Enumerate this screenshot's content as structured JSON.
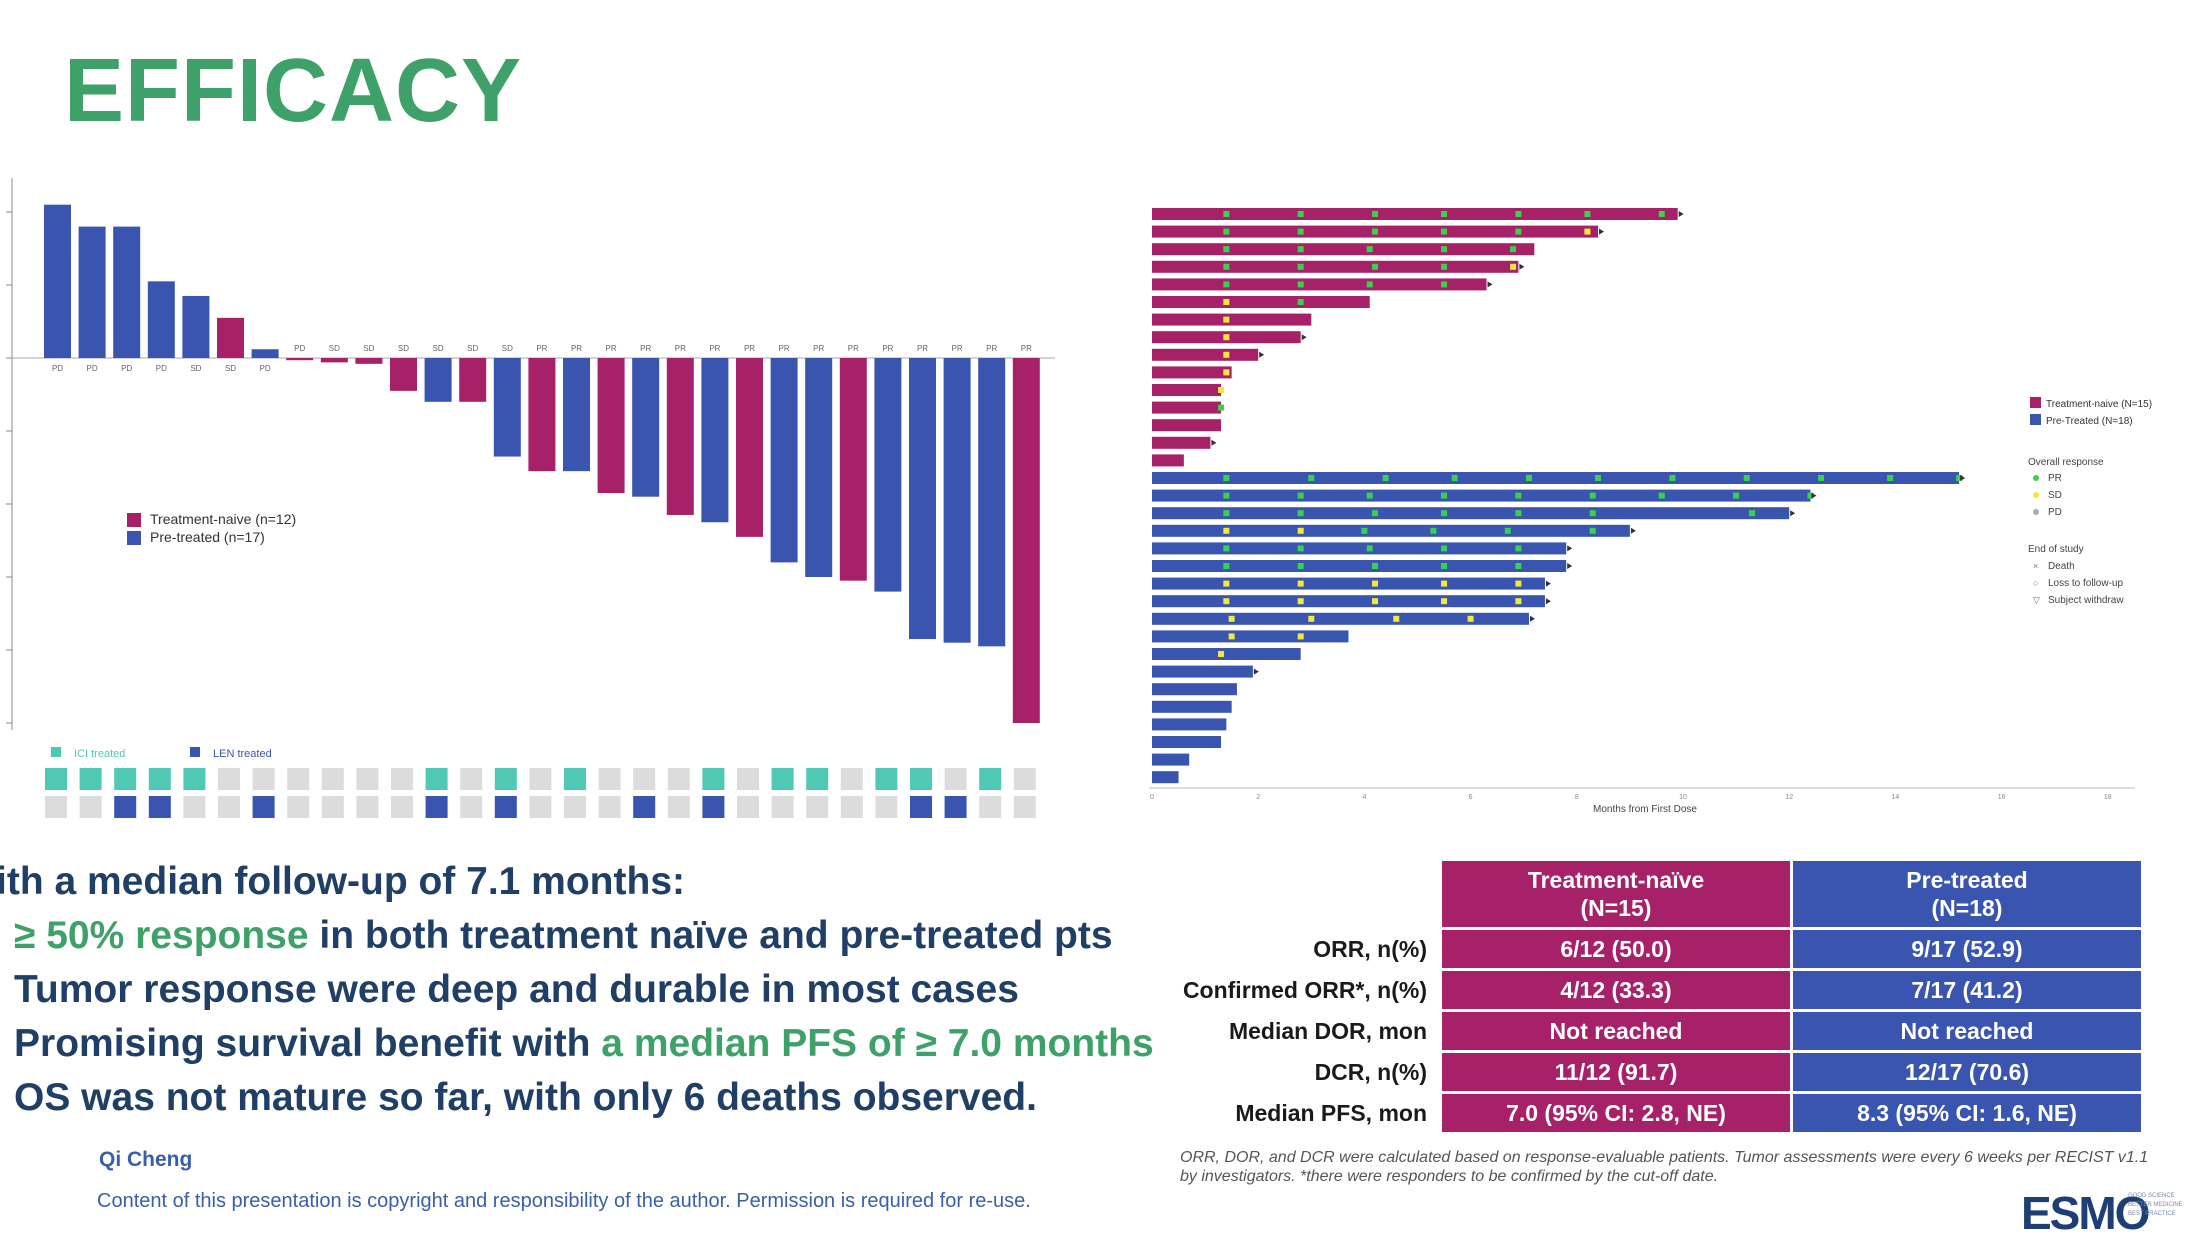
{
  "slide": {
    "title": "EFFICACY",
    "author": "Qi Cheng",
    "copyright": "Content of this presentation is copyright and responsibility of the author. Permission is required for re-use."
  },
  "bullets": [
    {
      "parts": [
        {
          "text": "ith a median follow-up of 7.1 months:",
          "hl": false
        }
      ]
    },
    {
      "parts": [
        {
          "text": "≥ 50% response",
          "hl": true
        },
        {
          "text": " in both treatment naïve and pre-treated pts",
          "hl": false
        }
      ]
    },
    {
      "parts": [
        {
          "text": "Tumor response were deep and durable in most cases",
          "hl": false
        }
      ]
    },
    {
      "parts": [
        {
          "text": "Promising survival benefit with ",
          "hl": false
        },
        {
          "text": "a median PFS of ≥ 7.0 months",
          "hl": true
        }
      ]
    },
    {
      "parts": [
        {
          "text": "OS was not mature so far, with only 6 deaths observed.",
          "hl": false
        }
      ]
    }
  ],
  "table": {
    "headers": [
      "Treatment-naïve\n(N=15)",
      "Pre-treated\n(N=18)"
    ],
    "rows": [
      {
        "label": "ORR, n(%)",
        "naive": "6/12 (50.0)",
        "pre": "9/17 (52.9)"
      },
      {
        "label": "Confirmed ORR*, n(%)",
        "naive": "4/12 (33.3)",
        "pre": "7/17 (41.2)"
      },
      {
        "label": "Median DOR, mon",
        "naive": "Not reached",
        "pre": "Not reached"
      },
      {
        "label": "DCR, n(%)",
        "naive": "11/12 (91.7)",
        "pre": "12/17 (70.6)"
      },
      {
        "label": "Median PFS, mon",
        "naive": "7.0 (95% CI: 2.8, NE)",
        "pre": "8.3 (95% CI: 1.6, NE)"
      }
    ],
    "footnote": "ORR, DOR, and DCR were calculated based on response-evaluable patients. Tumor assessments were every 6 weeks per RECIST v1.1 by investigators. *there were responders to be confirmed  by the cut-off date."
  },
  "logo": {
    "text": "ESMO",
    "sub": [
      "GOOD SCIENCE",
      "BETTER MEDICINE",
      "BEST PRACTICE"
    ]
  },
  "colors": {
    "naive": "#a72168",
    "pre": "#3a55b0",
    "ici": "#4fc8b4",
    "len": "#3a55b0",
    "empty": "#dcdcdc",
    "accent": "#3fa16a",
    "text": "#1f3f66"
  },
  "chart_data": [
    {
      "type": "bar",
      "title": "",
      "ylim": [
        -100,
        20
      ],
      "legend": [
        {
          "name": "Treatment-naive  (n=12)",
          "color": "naive"
        },
        {
          "name": "Pre-treated (n=17)",
          "color": "pre"
        }
      ],
      "bars": [
        {
          "value": 21,
          "group": "pre",
          "response": "PD"
        },
        {
          "value": 18,
          "group": "pre",
          "response": "PD"
        },
        {
          "value": 18,
          "group": "pre",
          "response": "PD"
        },
        {
          "value": 10.5,
          "group": "pre",
          "response": "PD"
        },
        {
          "value": 8.5,
          "group": "pre",
          "response": "SD"
        },
        {
          "value": 5.5,
          "group": "naive",
          "response": "SD"
        },
        {
          "value": 1.2,
          "group": "pre",
          "response": "PD"
        },
        {
          "value": -0.3,
          "group": "naive",
          "response": "PD"
        },
        {
          "value": -0.6,
          "group": "naive",
          "response": "SD"
        },
        {
          "value": -0.8,
          "group": "naive",
          "response": "SD"
        },
        {
          "value": -4.5,
          "group": "naive",
          "response": "SD"
        },
        {
          "value": -6,
          "group": "pre",
          "response": "SD"
        },
        {
          "value": -6,
          "group": "naive",
          "response": "SD"
        },
        {
          "value": -13.5,
          "group": "pre",
          "response": "SD"
        },
        {
          "value": -15.5,
          "group": "naive",
          "response": "PR"
        },
        {
          "value": -15.5,
          "group": "pre",
          "response": "PR"
        },
        {
          "value": -18.5,
          "group": "naive",
          "response": "PR"
        },
        {
          "value": -19,
          "group": "pre",
          "response": "PR"
        },
        {
          "value": -21.5,
          "group": "naive",
          "response": "PR"
        },
        {
          "value": -22.5,
          "group": "pre",
          "response": "PR"
        },
        {
          "value": -24.5,
          "group": "naive",
          "response": "PR"
        },
        {
          "value": -28,
          "group": "pre",
          "response": "PR"
        },
        {
          "value": -30,
          "group": "pre",
          "response": "PR"
        },
        {
          "value": -30.5,
          "group": "naive",
          "response": "PR"
        },
        {
          "value": -32,
          "group": "pre",
          "response": "PR"
        },
        {
          "value": -38.5,
          "group": "pre",
          "response": "PR"
        },
        {
          "value": -39,
          "group": "pre",
          "response": "PR"
        },
        {
          "value": -39.5,
          "group": "pre",
          "response": "PR"
        },
        {
          "value": -50,
          "group": "naive",
          "response": "PR"
        }
      ],
      "treatment_legend": [
        "ICI treated",
        "LEN treated"
      ],
      "ici_row": [
        1,
        1,
        1,
        1,
        1,
        0,
        0,
        0,
        0,
        0,
        0,
        1,
        0,
        1,
        0,
        1,
        0,
        0,
        0,
        1,
        0,
        1,
        1,
        0,
        1,
        1,
        0,
        1,
        0
      ],
      "len_row": [
        0,
        0,
        1,
        1,
        0,
        0,
        1,
        0,
        0,
        0,
        0,
        1,
        0,
        1,
        0,
        0,
        0,
        1,
        0,
        1,
        0,
        0,
        0,
        0,
        0,
        1,
        1,
        0,
        0
      ]
    },
    {
      "type": "bar",
      "orientation": "horizontal",
      "xlabel": "Months from First Dose",
      "xticks": [
        "0",
        "2",
        "4",
        "6",
        "8",
        "10",
        "12",
        "14",
        "16",
        "18"
      ],
      "xlim": [
        0,
        18
      ],
      "legend": {
        "groups": [
          {
            "name": "Treatment-naive (N=15)",
            "color": "naive"
          },
          {
            "name": "Pre-Treated (N=18)",
            "color": "pre"
          }
        ],
        "response_title": "Overall response",
        "responses": [
          "PR",
          "SD",
          "PD"
        ],
        "end_title": "End of study",
        "ends": [
          "Death",
          "Loss to follow-up",
          "Subject withdraw"
        ]
      },
      "naive": [
        {
          "months": 9.9,
          "ongoing": true,
          "pr": [
            1.4,
            2.8,
            4.2,
            5.5,
            6.9,
            8.2,
            9.6
          ],
          "sd": []
        },
        {
          "months": 8.4,
          "ongoing": true,
          "pr": [
            1.4,
            2.8,
            4.2,
            5.5,
            6.9
          ],
          "sd": [
            8.2
          ]
        },
        {
          "months": 7.2,
          "ongoing": false,
          "pr": [
            1.4,
            2.8,
            4.1,
            5.5,
            6.8
          ],
          "sd": []
        },
        {
          "months": 6.9,
          "ongoing": true,
          "pr": [
            1.4,
            2.8,
            4.2,
            5.5
          ],
          "sd": [
            6.8
          ]
        },
        {
          "months": 6.3,
          "ongoing": true,
          "pr": [
            1.4,
            2.8,
            4.1,
            5.5
          ],
          "sd": []
        },
        {
          "months": 4.1,
          "ongoing": false,
          "pr": [
            2.8
          ],
          "sd": [
            1.4
          ]
        },
        {
          "months": 3.0,
          "ongoing": false,
          "pr": [],
          "sd": [
            1.4
          ]
        },
        {
          "months": 2.8,
          "ongoing": true,
          "pr": [],
          "sd": [
            1.4
          ]
        },
        {
          "months": 2.0,
          "ongoing": true,
          "pr": [],
          "sd": [
            1.4
          ]
        },
        {
          "months": 1.5,
          "ongoing": false,
          "pr": [],
          "sd": [
            1.4
          ]
        },
        {
          "months": 1.3,
          "ongoing": false,
          "pr": [],
          "sd": [
            1.3
          ]
        },
        {
          "months": 1.3,
          "ongoing": false,
          "pr": [
            1.3
          ],
          "sd": []
        },
        {
          "months": 1.3,
          "ongoing": false,
          "pr": [],
          "sd": []
        },
        {
          "months": 1.1,
          "ongoing": true,
          "pr": [],
          "sd": []
        },
        {
          "months": 0.6,
          "ongoing": false,
          "pr": [],
          "sd": []
        }
      ],
      "pre": [
        {
          "months": 15.2,
          "ongoing": true,
          "pr": [
            1.4,
            3.0,
            4.4,
            5.7,
            7.1,
            8.4,
            9.8,
            11.2,
            12.6,
            13.9,
            15.2
          ],
          "sd": []
        },
        {
          "months": 12.4,
          "ongoing": true,
          "pr": [
            1.4,
            2.8,
            4.1,
            5.5,
            6.9,
            8.3,
            9.6,
            11.0,
            12.4
          ],
          "sd": []
        },
        {
          "months": 12.0,
          "ongoing": true,
          "pr": [
            1.4,
            2.8,
            4.2,
            5.5,
            6.9,
            8.3,
            11.3
          ],
          "sd": []
        },
        {
          "months": 9.0,
          "ongoing": true,
          "pr": [
            4.0,
            5.3,
            6.7,
            8.3
          ],
          "sd": [
            1.4,
            2.8
          ]
        },
        {
          "months": 7.8,
          "ongoing": true,
          "pr": [
            1.4,
            2.8,
            4.1,
            5.5,
            6.9
          ],
          "sd": []
        },
        {
          "months": 7.8,
          "ongoing": true,
          "pr": [
            1.4,
            2.8,
            4.2,
            5.5,
            6.9
          ],
          "sd": []
        },
        {
          "months": 7.4,
          "ongoing": true,
          "pr": [],
          "sd": [
            1.4,
            2.8,
            4.2,
            5.5,
            6.9
          ]
        },
        {
          "months": 7.4,
          "ongoing": true,
          "pr": [],
          "sd": [
            1.4,
            2.8,
            4.2,
            5.5,
            6.9
          ]
        },
        {
          "months": 7.1,
          "ongoing": true,
          "pr": [],
          "sd": [
            1.5,
            3.0,
            4.6,
            6.0
          ]
        },
        {
          "months": 3.7,
          "ongoing": false,
          "pr": [],
          "sd": [
            1.5,
            2.8
          ]
        },
        {
          "months": 2.8,
          "ongoing": false,
          "pr": [],
          "sd": [
            1.3
          ]
        },
        {
          "months": 1.9,
          "ongoing": true,
          "pr": [],
          "sd": []
        },
        {
          "months": 1.6,
          "ongoing": false,
          "pr": [],
          "sd": []
        },
        {
          "months": 1.5,
          "ongoing": false,
          "pr": [],
          "sd": []
        },
        {
          "months": 1.4,
          "ongoing": false,
          "pr": [],
          "sd": []
        },
        {
          "months": 1.3,
          "ongoing": false,
          "pr": [],
          "sd": []
        },
        {
          "months": 0.7,
          "ongoing": false,
          "pr": [],
          "sd": []
        },
        {
          "months": 0.5,
          "ongoing": false,
          "pr": [],
          "sd": []
        }
      ]
    }
  ]
}
